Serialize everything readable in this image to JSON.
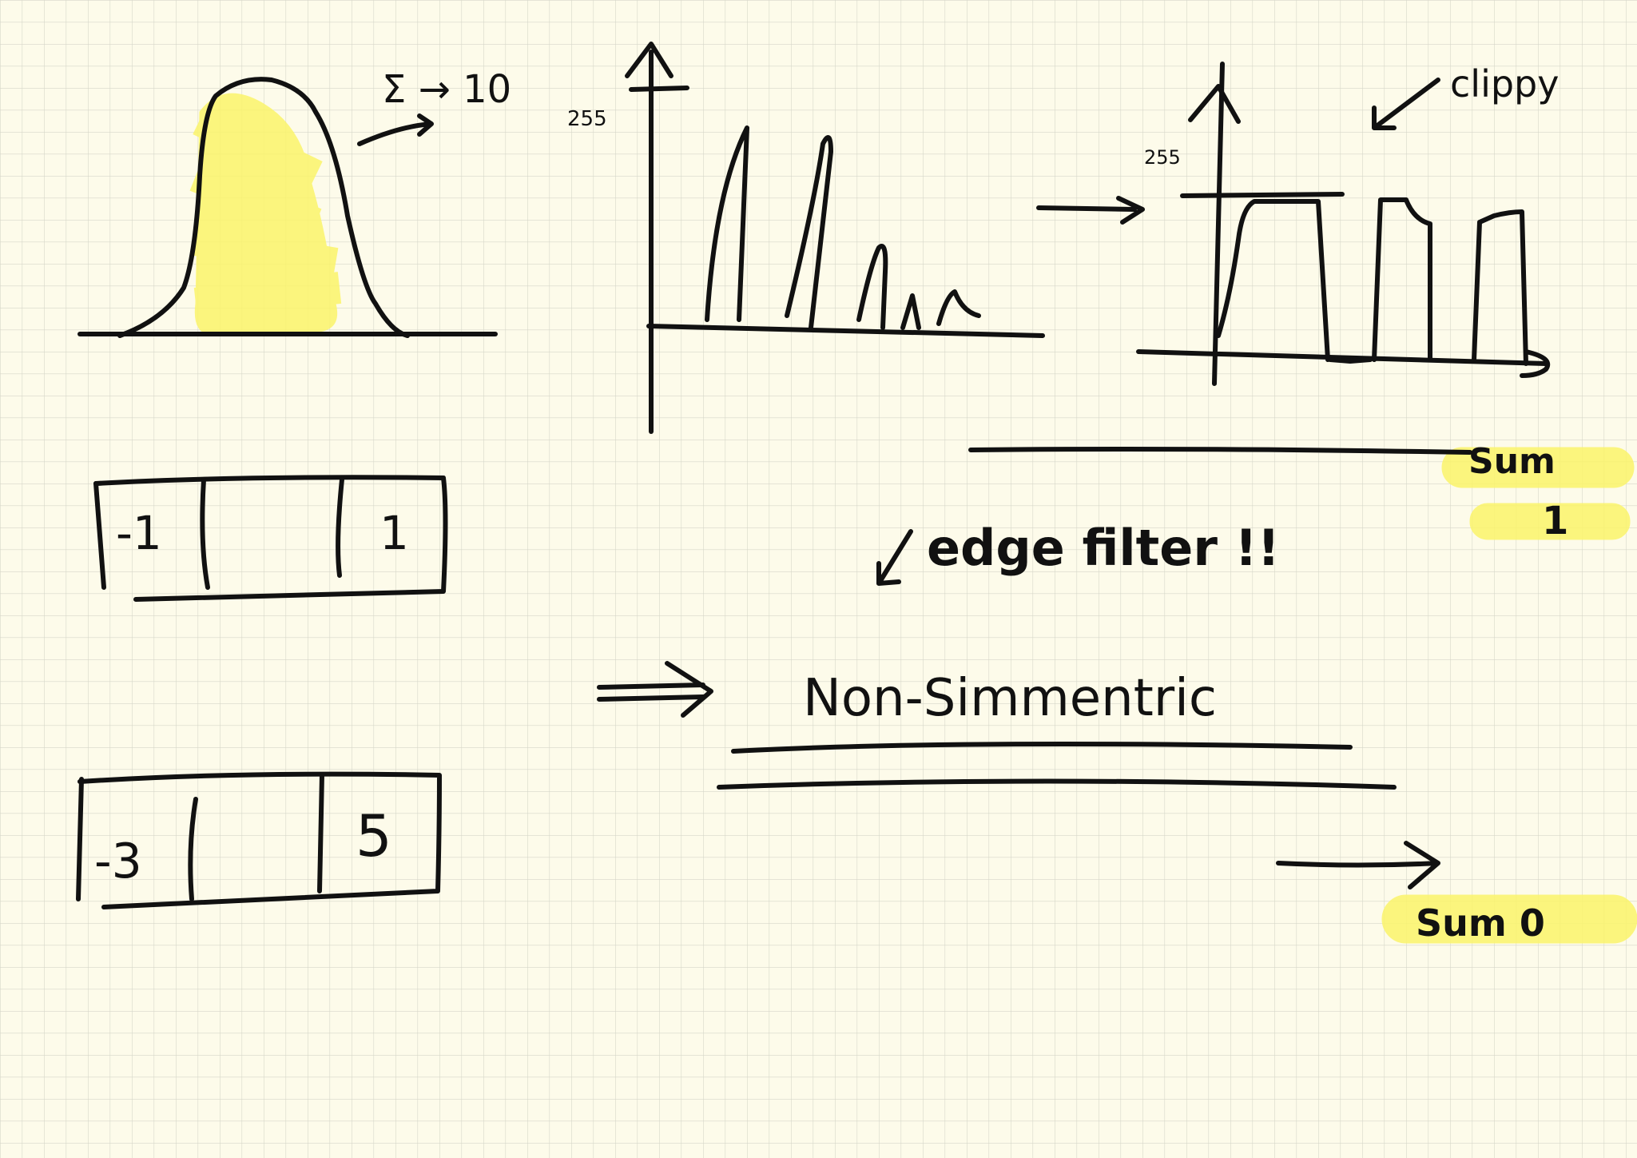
{
  "colors": {
    "paper": "#fdfbea",
    "grid": "#d6d7c9",
    "ink": "#111111",
    "highlight": "#fbf56b"
  },
  "notes": {
    "gaussian_sum": "Σ → 10",
    "hist_max_left": "255",
    "hist_max_right": "255",
    "clippy": "clippy",
    "sum_top": "Sum",
    "sum_top_value": "1",
    "edge_filter": "edge filter !!",
    "non_symmetric": "Non-Simmentric",
    "sum_bottom": "Sum 0"
  },
  "kernel_a": {
    "cells": [
      "-1",
      "",
      "1"
    ]
  },
  "kernel_b": {
    "cells": [
      "-3",
      "",
      "5"
    ]
  }
}
